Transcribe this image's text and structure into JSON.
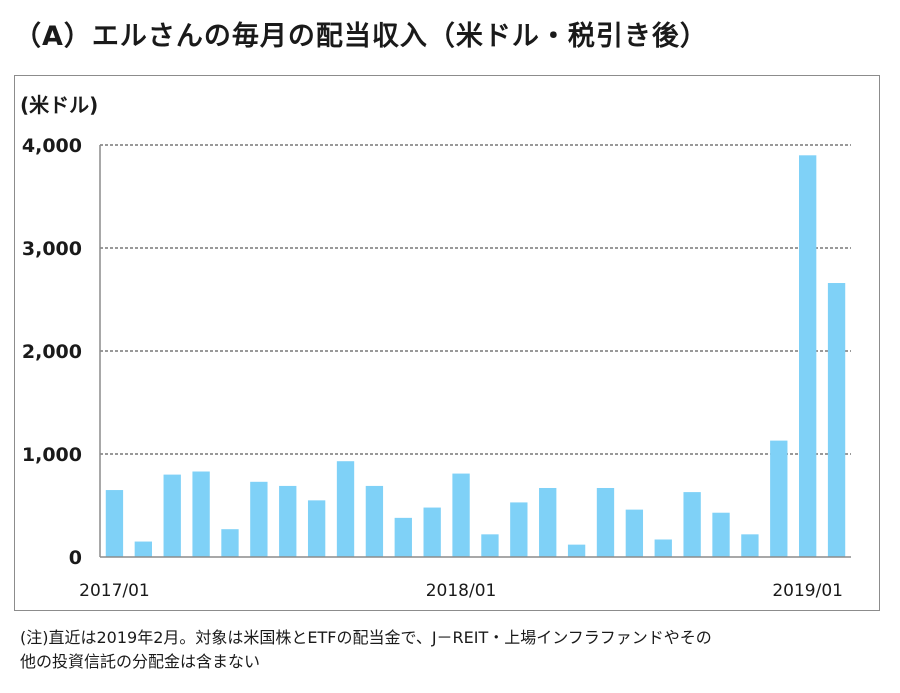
{
  "page": {
    "title": "（A）エルさんの毎月の配当収入（米ドル・税引き後）",
    "note_line1": "(注)直近は2019年2月。対象は米国株とETFの配当金で、J－REIT・上場インフラファンドやその",
    "note_line2": "他の投資信託の分配金は含まない"
  },
  "chart_data": {
    "type": "bar",
    "title": "（A）エルさんの毎月の配当収入（米ドル・税引き後）",
    "ylabel": "(米ドル)",
    "xlabel": "",
    "ylim": [
      0,
      4000
    ],
    "yticks": [
      0,
      1000,
      2000,
      3000,
      4000
    ],
    "ytick_labels": [
      "0",
      "1,000",
      "2,000",
      "3,000",
      "4,000"
    ],
    "grid": true,
    "bar_color": "#7fd1f7",
    "categories": [
      "2017/01",
      "2017/02",
      "2017/03",
      "2017/04",
      "2017/05",
      "2017/06",
      "2017/07",
      "2017/08",
      "2017/09",
      "2017/10",
      "2017/11",
      "2017/12",
      "2018/01",
      "2018/02",
      "2018/03",
      "2018/04",
      "2018/05",
      "2018/06",
      "2018/07",
      "2018/08",
      "2018/09",
      "2018/10",
      "2018/11",
      "2018/12",
      "2019/01",
      "2019/02"
    ],
    "values": [
      650,
      150,
      800,
      830,
      270,
      730,
      690,
      550,
      930,
      690,
      380,
      480,
      810,
      220,
      530,
      670,
      120,
      670,
      460,
      170,
      630,
      430,
      220,
      1130,
      3900,
      2660
    ],
    "xtick_labels": [
      {
        "category": "2017/01",
        "label": "2017/01"
      },
      {
        "category": "2018/01",
        "label": "2018/01"
      },
      {
        "category": "2019/01",
        "label": "2019/01"
      }
    ]
  }
}
